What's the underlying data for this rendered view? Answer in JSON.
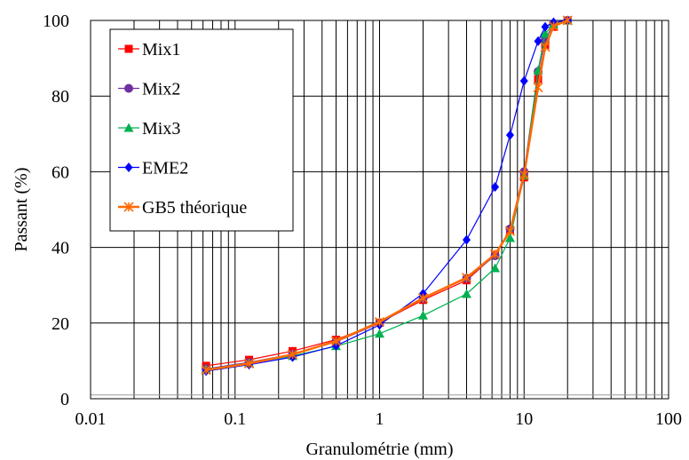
{
  "chart_data": {
    "type": "line",
    "title": "",
    "xlabel": "Granulométrie (mm)",
    "ylabel": "Passant (%)",
    "x_scale": "log",
    "xlim": [
      0.01,
      100
    ],
    "ylim": [
      0,
      100
    ],
    "x_ticks": [
      0.01,
      0.1,
      1,
      10,
      100
    ],
    "x_tick_labels": [
      "0.01",
      "0.1",
      "1",
      "10",
      "100"
    ],
    "y_ticks": [
      0,
      20,
      40,
      60,
      80,
      100
    ],
    "y_tick_labels": [
      "0",
      "20",
      "40",
      "60",
      "80",
      "100"
    ],
    "grid": true,
    "legend_position": "top-left",
    "series": [
      {
        "name": "Mix1",
        "color": "#ff0000",
        "marker": "square",
        "x": [
          0.063,
          0.125,
          0.25,
          0.5,
          1,
          2,
          4,
          6.3,
          8,
          10,
          12.5,
          14,
          16,
          20
        ],
        "y": [
          8.7,
          10.3,
          12.6,
          15.6,
          20.1,
          26.1,
          31.3,
          38.0,
          44.6,
          58.5,
          84.5,
          93.5,
          98.3,
          100
        ]
      },
      {
        "name": "Mix2",
        "color": "#7030a0",
        "marker": "circle",
        "x": [
          0.063,
          0.125,
          0.25,
          0.5,
          1,
          2,
          4,
          6.3,
          8,
          10,
          12.5,
          14,
          16,
          20
        ],
        "y": [
          7.9,
          9.6,
          11.8,
          15.0,
          20.0,
          26.5,
          31.8,
          37.8,
          44.9,
          60.0,
          86.5,
          95.0,
          99.0,
          100
        ]
      },
      {
        "name": "Mix3",
        "color": "#00b050",
        "marker": "triangle",
        "x": [
          0.063,
          0.125,
          0.25,
          0.5,
          1,
          2,
          4,
          6.3,
          8,
          10,
          12.5,
          14,
          16,
          20
        ],
        "y": [
          7.8,
          9.4,
          11.3,
          13.9,
          17.2,
          22.0,
          27.7,
          34.5,
          42.5,
          59.0,
          86.8,
          96.5,
          99.0,
          100
        ]
      },
      {
        "name": "EME2",
        "color": "#0000ff",
        "marker": "diamond",
        "x": [
          0.063,
          0.125,
          0.25,
          0.5,
          1,
          2,
          4,
          6.3,
          8,
          10,
          12.5,
          14,
          16,
          20
        ],
        "y": [
          7.3,
          9.0,
          11.0,
          14.0,
          19.5,
          27.8,
          42.0,
          56.0,
          69.7,
          84.0,
          94.5,
          98.3,
          99.5,
          100
        ]
      },
      {
        "name": "GB5 théorique",
        "color": "#ff6a00",
        "marker": "star",
        "x": [
          0.063,
          0.125,
          0.25,
          0.5,
          1,
          2,
          4,
          6.3,
          8,
          10,
          12.5,
          14,
          16,
          20
        ],
        "y": [
          7.6,
          9.3,
          11.7,
          15.2,
          20.3,
          26.6,
          32.0,
          38.2,
          44.3,
          59.2,
          82.3,
          93.0,
          98.5,
          100
        ]
      }
    ]
  }
}
